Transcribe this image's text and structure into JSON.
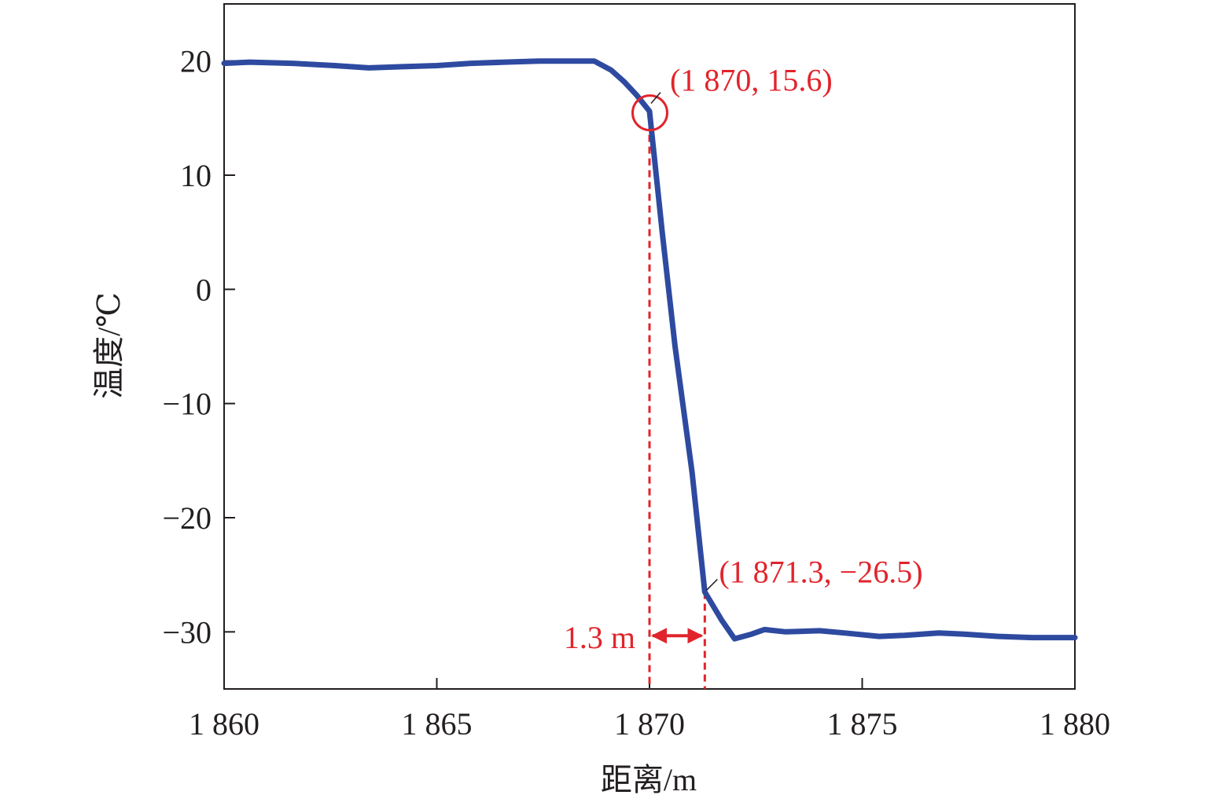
{
  "chart_data": {
    "type": "line",
    "xlabel": "距离/m",
    "ylabel": "温度/℃",
    "xlim": [
      1860,
      1880
    ],
    "ylim": [
      -35,
      25
    ],
    "xticks": [
      1860,
      1865,
      1870,
      1875,
      1880
    ],
    "xtick_labels": [
      "1 860",
      "1 865",
      "1 870",
      "1 875",
      "1 880"
    ],
    "yticks": [
      20,
      10,
      0,
      -10,
      -20,
      -30
    ],
    "ytick_labels": [
      "20",
      "10",
      "0",
      "−10",
      "−20",
      "−30"
    ],
    "grid": false,
    "line_color": "#2e4aa0",
    "annotation_color": "#e1242b",
    "series": [
      {
        "x": [
          1860,
          1860.6,
          1861.6,
          1862.6,
          1863.4,
          1864.2,
          1865.0,
          1865.8,
          1866.6,
          1867.4,
          1868.0,
          1868.7,
          1869.1,
          1869.4,
          1869.7,
          1870.0,
          1870.3,
          1870.6,
          1871.0,
          1871.3,
          1871.7,
          1872.0,
          1872.4,
          1872.7,
          1873.2,
          1874.0,
          1874.6,
          1875.4,
          1876.0,
          1876.8,
          1877.4,
          1878.2,
          1879.0,
          1880.0
        ],
        "y": [
          19.8,
          19.9,
          19.8,
          19.6,
          19.4,
          19.5,
          19.6,
          19.8,
          19.9,
          20.0,
          20.0,
          20.0,
          19.2,
          18.2,
          17.0,
          15.6,
          5.0,
          -5.0,
          -16.0,
          -26.5,
          -29.0,
          -30.6,
          -30.2,
          -29.8,
          -30.0,
          -29.9,
          -30.1,
          -30.4,
          -30.3,
          -30.1,
          -30.2,
          -30.4,
          -30.5,
          -30.5
        ]
      }
    ],
    "annotations": [
      {
        "text": "(1 870, 15.6)",
        "x": 1870,
        "y": 15.6,
        "marker": "circle"
      },
      {
        "text": "(1 871.3, −26.5)",
        "x": 1871.3,
        "y": -26.5
      },
      {
        "text": "1.3 m",
        "x_from": 1870,
        "x_to": 1871.3,
        "y": -30.2
      }
    ]
  }
}
